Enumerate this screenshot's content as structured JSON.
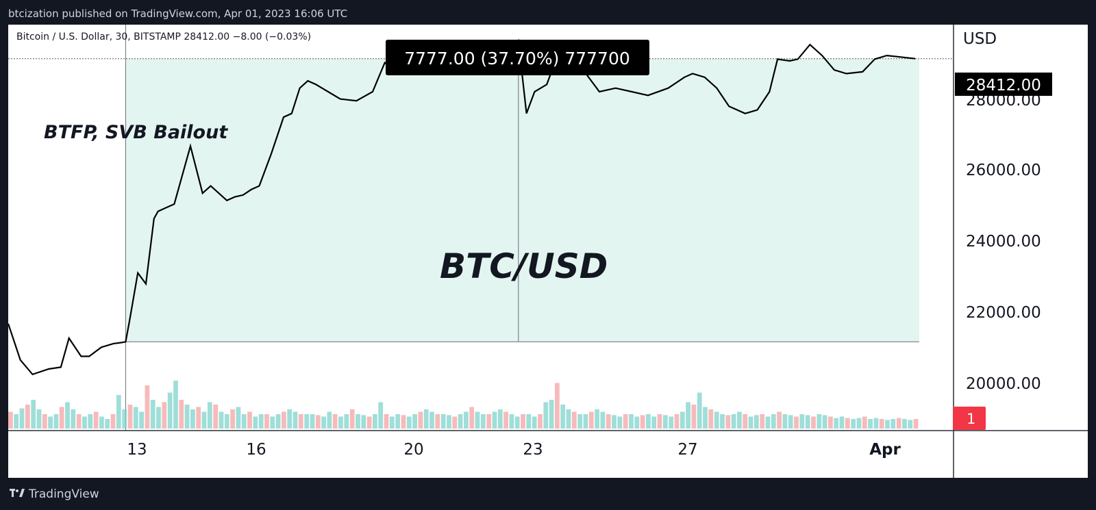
{
  "header": {
    "publish_line": "btcization published on TradingView.com, Apr 01, 2023 16:06 UTC"
  },
  "footer": {
    "brand": "TradingView",
    "logo_icon": "tradingview-logo-icon"
  },
  "symbol_info": "Bitcoin / U.S. Dollar, 30, BITSTAMP  28412.00  −8.00 (−0.03%)",
  "measure_label": "7777.00 (37.70%) 777700",
  "annotation_left": "BTFP, SVB Bailout",
  "annotation_center": "BTC/USD",
  "price_axis": {
    "currency": "USD",
    "labels": [
      "28000.00",
      "26000.00",
      "24000.00",
      "22000.00",
      "20000.00"
    ],
    "current_price_label": "28412.00",
    "badge": "1"
  },
  "time_axis": {
    "labels": [
      "13",
      "16",
      "20",
      "23",
      "27",
      "Apr"
    ]
  },
  "colors": {
    "background": "#131722",
    "line": "#000000",
    "range_fill": "#e3f5f0",
    "vol_up": "#7fd3cc",
    "vol_down": "#f4a3a3",
    "badge": "#f23645"
  },
  "chart_data": {
    "type": "line",
    "title": "Bitcoin / U.S. Dollar, 30, BITSTAMP",
    "x_unit": "days (March 2023, 30m bars)",
    "y_range": [
      19000,
      29200
    ],
    "x_range": [
      10.0,
      32.5
    ],
    "x": [
      10.0,
      10.3,
      10.6,
      11.0,
      11.3,
      11.5,
      11.8,
      12.0,
      12.3,
      12.6,
      12.8,
      12.9,
      13.0,
      13.2,
      13.4,
      13.6,
      13.7,
      13.9,
      14.1,
      14.5,
      14.8,
      15.0,
      15.2,
      15.4,
      15.6,
      15.8,
      16.0,
      16.2,
      16.5,
      16.8,
      17.0,
      17.2,
      17.4,
      17.6,
      17.9,
      18.2,
      18.6,
      19.0,
      19.3,
      19.6,
      19.8,
      20.1,
      20.4,
      20.7,
      21.0,
      21.3,
      21.6,
      21.9,
      22.2,
      22.5,
      22.6,
      22.8,
      23.0,
      23.3,
      23.6,
      23.8,
      24.2,
      24.6,
      25.0,
      25.4,
      25.8,
      26.3,
      26.7,
      26.9,
      27.2,
      27.5,
      27.8,
      28.2,
      28.5,
      28.8,
      29.0,
      29.3,
      29.5,
      29.8,
      30.1,
      30.4,
      30.7,
      31.1,
      31.4,
      31.7,
      32.1,
      32.4
    ],
    "y": [
      21100,
      20100,
      19700,
      19850,
      19900,
      20700,
      20200,
      20200,
      20450,
      20550,
      20580,
      20600,
      21200,
      22500,
      22200,
      24000,
      24200,
      24300,
      24400,
      26000,
      24700,
      24900,
      24700,
      24500,
      24600,
      24650,
      24800,
      24900,
      25800,
      26800,
      26900,
      27600,
      27800,
      27700,
      27500,
      27300,
      27250,
      27500,
      28300,
      28000,
      28200,
      28050,
      28200,
      28300,
      28200,
      28350,
      28500,
      28300,
      28500,
      28700,
      28900,
      26900,
      27500,
      27700,
      28600,
      28300,
      28100,
      27500,
      27600,
      27500,
      27400,
      27600,
      27900,
      28000,
      27900,
      27600,
      27100,
      26900,
      27000,
      27500,
      28400,
      28350,
      28400,
      28800,
      28500,
      28100,
      28000,
      28050,
      28400,
      28500,
      28450,
      28412
    ]
  },
  "volume_data": {
    "bins": 160,
    "values_rel": [
      0.35,
      0.3,
      0.42,
      0.5,
      0.6,
      0.4,
      0.3,
      0.25,
      0.3,
      0.45,
      0.55,
      0.4,
      0.3,
      0.25,
      0.3,
      0.35,
      0.25,
      0.2,
      0.3,
      0.7,
      0.4,
      0.5,
      0.45,
      0.35,
      0.9,
      0.6,
      0.45,
      0.55,
      0.75,
      1.0,
      0.6,
      0.5,
      0.4,
      0.45,
      0.35,
      0.55,
      0.5,
      0.35,
      0.3,
      0.4,
      0.45,
      0.3,
      0.35,
      0.25,
      0.3,
      0.3,
      0.25,
      0.3,
      0.35,
      0.4,
      0.35,
      0.3,
      0.3,
      0.3,
      0.28,
      0.25,
      0.35,
      0.3,
      0.25,
      0.3,
      0.4,
      0.3,
      0.28,
      0.25,
      0.3,
      0.55,
      0.3,
      0.25,
      0.3,
      0.28,
      0.25,
      0.3,
      0.35,
      0.4,
      0.35,
      0.3,
      0.3,
      0.28,
      0.25,
      0.3,
      0.35,
      0.45,
      0.35,
      0.3,
      0.3,
      0.35,
      0.4,
      0.35,
      0.3,
      0.25,
      0.3,
      0.3,
      0.25,
      0.3,
      0.55,
      0.6,
      0.95,
      0.5,
      0.4,
      0.35,
      0.3,
      0.3,
      0.35,
      0.4,
      0.35,
      0.3,
      0.28,
      0.25,
      0.3,
      0.3,
      0.25,
      0.28,
      0.3,
      0.25,
      0.3,
      0.28,
      0.25,
      0.3,
      0.35,
      0.55,
      0.5,
      0.75,
      0.45,
      0.4,
      0.35,
      0.3,
      0.28,
      0.3,
      0.35,
      0.3,
      0.25,
      0.28,
      0.3,
      0.25,
      0.3,
      0.35,
      0.3,
      0.28,
      0.25,
      0.3,
      0.28,
      0.25,
      0.3,
      0.28,
      0.25,
      0.22,
      0.25,
      0.22,
      0.2,
      0.22,
      0.25,
      0.2,
      0.22,
      0.2,
      0.18,
      0.2,
      0.22,
      0.2,
      0.18,
      0.2
    ]
  }
}
